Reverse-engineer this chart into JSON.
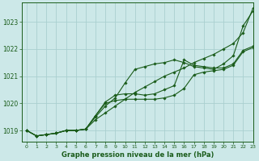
{
  "bg_color": "#cce8e8",
  "grid_color": "#aacfcf",
  "line_color": "#1a5c1a",
  "title": "Graphe pression niveau de la mer (hPa)",
  "title_color": "#1a5c1a",
  "ylim": [
    1018.6,
    1023.7
  ],
  "xlim": [
    -0.5,
    23
  ],
  "yticks": [
    1019,
    1020,
    1021,
    1022,
    1023
  ],
  "xticks": [
    0,
    1,
    2,
    3,
    4,
    5,
    6,
    7,
    8,
    9,
    10,
    11,
    12,
    13,
    14,
    15,
    16,
    17,
    18,
    19,
    20,
    21,
    22,
    23
  ],
  "series": [
    [
      1019.0,
      1018.8,
      1018.85,
      1018.9,
      1019.0,
      1019.0,
      1019.05,
      1019.4,
      1019.65,
      1019.9,
      1020.15,
      1020.4,
      1020.6,
      1020.8,
      1021.0,
      1021.15,
      1021.3,
      1021.5,
      1021.65,
      1021.8,
      1022.0,
      1022.2,
      1022.6,
      1023.5
    ],
    [
      1019.0,
      1018.8,
      1018.85,
      1018.9,
      1019.0,
      1019.0,
      1019.05,
      1019.5,
      1019.9,
      1020.2,
      1020.75,
      1021.25,
      1021.35,
      1021.45,
      1021.5,
      1021.6,
      1021.5,
      1021.35,
      1021.3,
      1021.25,
      1021.45,
      1021.75,
      1022.85,
      1023.4
    ],
    [
      1019.0,
      1018.8,
      1018.85,
      1018.9,
      1019.0,
      1019.0,
      1019.05,
      1019.55,
      1020.05,
      1020.3,
      1020.35,
      1020.35,
      1020.3,
      1020.35,
      1020.5,
      1020.65,
      1021.6,
      1021.4,
      1021.35,
      1021.3,
      1021.3,
      1021.45,
      1021.95,
      1022.1
    ],
    [
      1019.0,
      1018.8,
      1018.85,
      1018.9,
      1019.0,
      1019.0,
      1019.05,
      1019.55,
      1020.0,
      1020.1,
      1020.15,
      1020.15,
      1020.15,
      1020.15,
      1020.2,
      1020.3,
      1020.55,
      1021.05,
      1021.15,
      1021.2,
      1021.25,
      1021.4,
      1021.9,
      1022.05
    ]
  ]
}
